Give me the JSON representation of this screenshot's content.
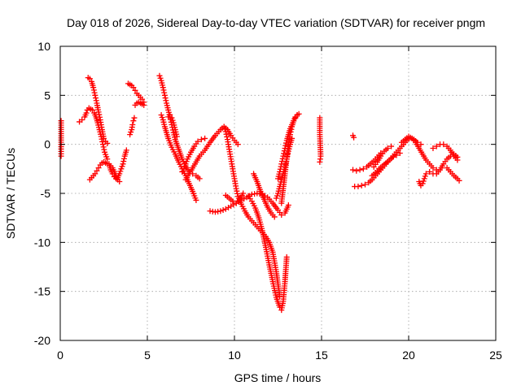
{
  "chart_data": {
    "type": "scatter",
    "title": "Day 018 of 2026, Sidereal Day-to-day VTEC variation (SDTVAR) for receiver pngm",
    "xlabel": "GPS time / hours",
    "ylabel": "SDTVAR / TECUs",
    "xlim": [
      0,
      25
    ],
    "ylim": [
      -20,
      10
    ],
    "xticks": [
      0,
      5,
      10,
      15,
      20,
      25
    ],
    "yticks": [
      -20,
      -15,
      -10,
      -5,
      0,
      5,
      10
    ],
    "grid": true,
    "marker": "plus",
    "color": "#ff0000",
    "tracks": [
      {
        "x": [
          0.05,
          0.05,
          0.05
        ],
        "y": [
          2.4,
          0.0,
          -1.2
        ]
      },
      {
        "x": [
          1.1,
          1.25,
          1.4,
          1.5
        ],
        "y": [
          2.3,
          2.5,
          2.8,
          3.2
        ]
      },
      {
        "x": [
          1.6,
          1.7,
          1.8,
          1.9,
          2.0,
          2.1,
          2.2,
          2.3,
          2.4,
          2.5,
          2.6,
          2.7
        ],
        "y": [
          6.8,
          6.7,
          6.4,
          5.8,
          5.0,
          4.2,
          3.3,
          2.5,
          1.5,
          0.6,
          0.3,
          0.1
        ]
      },
      {
        "x": [
          1.55,
          1.65,
          1.75,
          1.85,
          1.95,
          2.05,
          2.15,
          2.25,
          2.35,
          2.45,
          2.55,
          2.7
        ],
        "y": [
          3.5,
          3.7,
          3.6,
          3.5,
          3.2,
          2.8,
          2.2,
          1.5,
          0.8,
          0.0,
          -0.8,
          -1.5
        ]
      },
      {
        "x": [
          1.7,
          1.8,
          1.9,
          2.0,
          2.1,
          2.2,
          2.3,
          2.4,
          2.5,
          2.6,
          2.7
        ],
        "y": [
          -3.6,
          -3.4,
          -3.2,
          -3.0,
          -2.7,
          -2.4,
          -2.1,
          -1.9,
          -1.8,
          -1.9,
          -2.0
        ]
      },
      {
        "x": [
          2.8,
          2.9,
          3.0,
          3.1,
          3.2,
          3.3,
          3.4,
          3.5,
          3.6,
          3.7,
          3.8
        ],
        "y": [
          -2.0,
          -2.6,
          -3.0,
          -3.3,
          -3.5,
          -3.4,
          -3.0,
          -2.5,
          -2.0,
          -1.2,
          -0.6
        ]
      },
      {
        "x": [
          2.9,
          3.0,
          3.1,
          3.2,
          3.3,
          3.4
        ],
        "y": [
          -2.2,
          -2.4,
          -2.8,
          -3.2,
          -3.6,
          -3.8
        ]
      },
      {
        "x": [
          4.0,
          4.1,
          4.15,
          4.2,
          4.25
        ],
        "y": [
          1.0,
          1.5,
          2.0,
          2.4,
          2.7
        ]
      },
      {
        "x": [
          3.9,
          4.0,
          4.1,
          4.2,
          4.3,
          4.4,
          4.5,
          4.6,
          4.7,
          4.8
        ],
        "y": [
          6.2,
          6.1,
          6.0,
          5.8,
          5.5,
          5.2,
          5.0,
          4.8,
          4.6,
          4.3
        ]
      },
      {
        "x": [
          4.3,
          4.4,
          4.5,
          4.6,
          4.7,
          4.8
        ],
        "y": [
          4.0,
          4.2,
          4.3,
          4.2,
          4.1,
          4.0
        ]
      },
      {
        "x": [
          5.7,
          5.8,
          5.9,
          6.0,
          6.1,
          6.2,
          6.3,
          6.4,
          6.5,
          6.6,
          6.8,
          7.0,
          7.2,
          7.4,
          7.6,
          7.8,
          8.0
        ],
        "y": [
          7.0,
          6.5,
          5.8,
          5.0,
          4.2,
          3.5,
          2.8,
          2.0,
          1.2,
          0.5,
          -0.5,
          -1.5,
          -2.2,
          -2.8,
          -3.0,
          -3.2,
          -3.5
        ]
      },
      {
        "x": [
          5.8,
          5.9,
          6.0,
          6.1,
          6.2,
          6.4,
          6.6,
          6.8,
          7.0,
          7.2,
          7.4,
          7.6,
          7.8
        ],
        "y": [
          3.0,
          2.5,
          1.8,
          1.2,
          0.6,
          -0.3,
          -1.0,
          -1.8,
          -2.5,
          -3.2,
          -4.0,
          -4.8,
          -5.7
        ]
      },
      {
        "x": [
          6.2,
          6.3,
          6.4,
          6.5,
          6.6,
          6.7
        ],
        "y": [
          2.8,
          3.0,
          2.7,
          2.2,
          1.5,
          0.8
        ]
      },
      {
        "x": [
          7.0,
          7.1,
          7.2,
          7.3,
          7.5,
          7.7,
          7.9,
          8.1,
          8.3
        ],
        "y": [
          -2.8,
          -2.5,
          -2.0,
          -1.5,
          -0.8,
          -0.2,
          0.3,
          0.5,
          0.6
        ]
      },
      {
        "x": [
          7.2,
          7.4,
          7.6,
          7.8,
          8.0,
          8.3,
          8.6,
          8.9,
          9.2,
          9.4,
          9.6,
          9.8,
          10.0,
          10.2
        ],
        "y": [
          -3.6,
          -3.0,
          -2.4,
          -1.8,
          -1.2,
          -0.6,
          0.2,
          0.9,
          1.5,
          1.8,
          1.5,
          0.9,
          0.4,
          0.0
        ]
      },
      {
        "x": [
          8.6,
          8.9,
          9.2,
          9.5,
          9.8,
          10.1,
          10.4,
          10.7,
          11.0,
          11.3,
          11.6,
          11.9,
          12.2,
          12.5,
          12.7,
          12.9,
          13.1
        ],
        "y": [
          -6.8,
          -6.9,
          -6.8,
          -6.6,
          -6.3,
          -6.0,
          -5.7,
          -5.4,
          -5.1,
          -5.0,
          -5.1,
          -5.4,
          -6.0,
          -6.7,
          -7.2,
          -7.0,
          -6.2
        ]
      },
      {
        "x": [
          9.4,
          9.5,
          9.6,
          9.7,
          9.8,
          9.9,
          10.0,
          10.1,
          10.2,
          10.4,
          10.6,
          10.8,
          11.0,
          11.2,
          11.4,
          11.6,
          11.8,
          12.0,
          12.2,
          12.4,
          12.6
        ],
        "y": [
          1.8,
          1.3,
          0.5,
          -0.5,
          -1.5,
          -2.5,
          -3.5,
          -4.5,
          -5.3,
          -6.1,
          -6.8,
          -7.4,
          -7.8,
          -8.2,
          -8.6,
          -9.0,
          -9.4,
          -10.0,
          -11.0,
          -13.0,
          -15.5
        ]
      },
      {
        "x": [
          9.5,
          9.7,
          9.9,
          10.1,
          10.3,
          10.5
        ],
        "y": [
          -5.2,
          -5.5,
          -5.8,
          -6.0,
          -5.6,
          -5.0
        ]
      },
      {
        "x": [
          10.8,
          11.0,
          11.2,
          11.4,
          11.6,
          11.8,
          12.0,
          12.2,
          12.4,
          12.6,
          12.7,
          12.8,
          12.9,
          13.0
        ],
        "y": [
          -5.3,
          -5.8,
          -6.5,
          -7.5,
          -8.8,
          -10.5,
          -12.3,
          -14.0,
          -15.6,
          -16.6,
          -16.9,
          -16.0,
          -14.0,
          -11.5
        ]
      },
      {
        "x": [
          11.1,
          11.3,
          11.5,
          11.7,
          11.9,
          12.1,
          12.3
        ],
        "y": [
          -3.0,
          -3.8,
          -4.8,
          -5.6,
          -6.4,
          -7.0,
          -7.4
        ]
      },
      {
        "x": [
          12.7,
          12.8,
          12.9,
          13.0,
          13.1,
          13.2,
          13.3,
          13.4,
          13.5,
          13.6
        ],
        "y": [
          -6.0,
          -4.5,
          -3.0,
          -1.5,
          0.0,
          1.0,
          1.8,
          2.4,
          2.8,
          3.0
        ]
      },
      {
        "x": [
          12.5,
          12.6,
          12.7,
          12.8,
          12.9,
          13.0,
          13.1,
          13.2,
          13.3,
          13.4,
          13.5,
          13.6,
          13.7
        ],
        "y": [
          -3.5,
          -2.8,
          -2.0,
          -1.2,
          -0.4,
          0.4,
          1.0,
          1.6,
          2.0,
          2.4,
          2.7,
          3.0,
          3.1
        ]
      },
      {
        "x": [
          12.4,
          12.5,
          12.6,
          12.7,
          12.8,
          12.9,
          13.0,
          13.1,
          13.2,
          13.3
        ],
        "y": [
          -5.5,
          -5.0,
          -4.3,
          -3.6,
          -3.0,
          -2.3,
          -1.5,
          -0.7,
          0.0,
          0.6
        ]
      },
      {
        "x": [
          14.9,
          14.9,
          14.95,
          14.9
        ],
        "y": [
          2.7,
          1.0,
          -1.2,
          -1.8
        ]
      },
      {
        "x": [
          16.8,
          16.85
        ],
        "y": [
          0.9,
          0.7
        ]
      },
      {
        "x": [
          16.8,
          17.0,
          17.2,
          17.4,
          17.6,
          17.8,
          18.0,
          18.2,
          18.4
        ],
        "y": [
          -2.6,
          -2.7,
          -2.6,
          -2.5,
          -2.3,
          -2.0,
          -1.7,
          -1.3,
          -0.9
        ]
      },
      {
        "x": [
          16.9,
          17.1,
          17.3,
          17.5,
          17.7,
          17.9,
          18.1,
          18.3,
          18.5,
          18.7,
          18.9,
          19.1,
          19.3,
          19.5,
          19.7,
          19.9,
          20.1,
          20.3,
          20.5,
          20.7
        ],
        "y": [
          -4.3,
          -4.3,
          -4.2,
          -4.1,
          -3.9,
          -3.6,
          -3.2,
          -2.8,
          -2.4,
          -2.0,
          -1.6,
          -1.2,
          -0.8,
          -0.4,
          0.0,
          0.4,
          0.7,
          0.5,
          0.2,
          0.0
        ]
      },
      {
        "x": [
          17.9,
          18.1,
          18.3,
          18.5,
          18.7,
          18.9,
          19.1,
          19.3,
          19.5
        ],
        "y": [
          -3.2,
          -2.9,
          -2.5,
          -2.2,
          -1.9,
          -1.6,
          -1.3,
          -1.1,
          -0.9
        ]
      },
      {
        "x": [
          18.0,
          18.2,
          18.4,
          18.6,
          18.8,
          19.0
        ],
        "y": [
          -2.3,
          -1.8,
          -1.2,
          -0.7,
          -0.4,
          -0.2
        ]
      },
      {
        "x": [
          19.6,
          19.8,
          20.0,
          20.2,
          20.4,
          20.6,
          20.8,
          21.0,
          21.2,
          21.4,
          21.6
        ],
        "y": [
          0.2,
          0.5,
          0.8,
          0.6,
          0.2,
          -0.4,
          -1.0,
          -1.6,
          -2.0,
          -2.4,
          -2.6
        ]
      },
      {
        "x": [
          20.6,
          20.7,
          20.8,
          20.9,
          21.0
        ],
        "y": [
          -3.8,
          -4.2,
          -4.0,
          -3.5,
          -3.0
        ]
      },
      {
        "x": [
          21.2,
          21.4,
          21.6,
          21.8,
          22.0,
          22.2,
          22.4,
          22.6,
          22.8
        ],
        "y": [
          -2.8,
          -3.0,
          -3.0,
          -2.6,
          -2.0,
          -1.5,
          -1.2,
          -1.0,
          -1.3
        ]
      },
      {
        "x": [
          21.4,
          21.6,
          21.8,
          22.0,
          22.2,
          22.4,
          22.6,
          22.8
        ],
        "y": [
          -0.4,
          -0.2,
          0.0,
          0.0,
          -0.2,
          -0.6,
          -1.2,
          -1.6
        ]
      },
      {
        "x": [
          22.2,
          22.4,
          22.6,
          22.8,
          22.9
        ],
        "y": [
          -2.4,
          -2.8,
          -3.2,
          -3.5,
          -3.7
        ]
      }
    ]
  }
}
